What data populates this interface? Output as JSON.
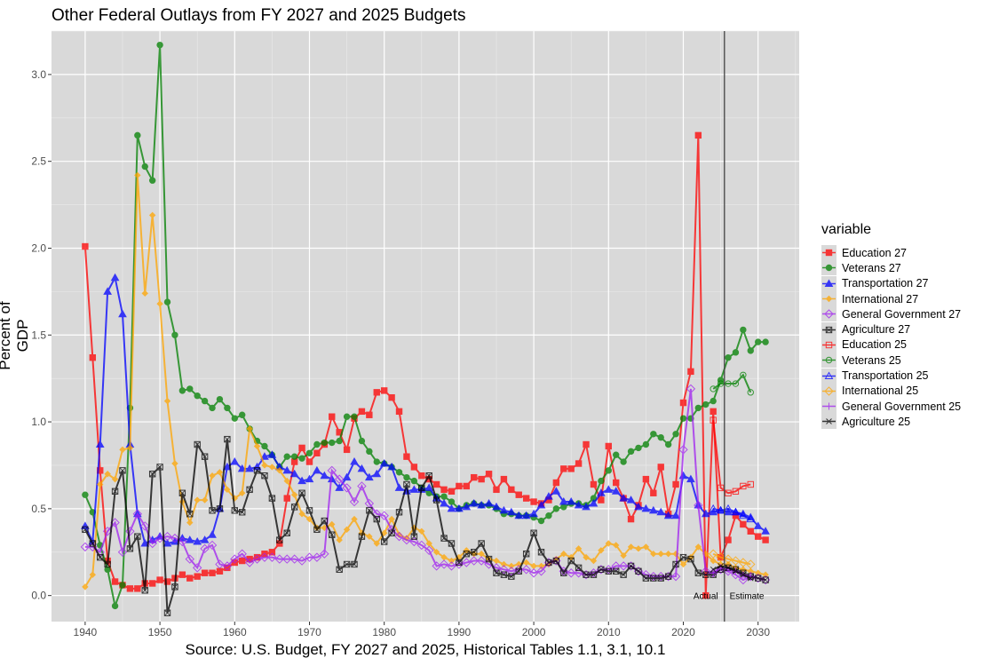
{
  "chart_data": {
    "type": "line",
    "title": "Other Federal Outlays from FY 2027 and 2025 Budgets",
    "xlabel": "Source: U.S. Budget, FY 2027 and 2025, Historical Tables 1.1, 3.1, 10.1",
    "ylabel": "Percent of GDP",
    "xlim": [
      1935.5,
      2035.5
    ],
    "ylim": [
      -0.15,
      3.25
    ],
    "xticks": [
      1940,
      1950,
      1960,
      1970,
      1980,
      1990,
      2000,
      2010,
      2020,
      2030
    ],
    "yticks": [
      "0.0",
      "0.5",
      "1.0",
      "1.5",
      "2.0",
      "2.5",
      "3.0"
    ],
    "grid": true,
    "legend_title": "variable",
    "legend_position": "right",
    "divider_year": 2025.5,
    "annotations": [
      {
        "text": "Actual",
        "x": 2023,
        "y": 0.0
      },
      {
        "text": "Estimate",
        "x": 2028.5,
        "y": 0.0
      }
    ],
    "series": [
      {
        "name": "Education 27",
        "color": "#ff0000",
        "marker": "square-filled",
        "start": 1940,
        "values": [
          2.01,
          1.37,
          0.72,
          0.2,
          0.08,
          0.06,
          0.04,
          0.04,
          0.07,
          0.07,
          0.09,
          0.08,
          0.1,
          0.12,
          0.1,
          0.11,
          0.13,
          0.13,
          0.14,
          0.16,
          0.19,
          0.2,
          0.21,
          0.22,
          0.24,
          0.25,
          0.3,
          0.56,
          0.77,
          0.85,
          0.77,
          0.82,
          0.87,
          1.03,
          0.94,
          0.84,
          1.02,
          1.06,
          1.04,
          1.17,
          1.18,
          1.14,
          1.06,
          0.8,
          0.74,
          0.69,
          0.67,
          0.64,
          0.61,
          0.6,
          0.63,
          0.63,
          0.68,
          0.67,
          0.7,
          0.61,
          0.67,
          0.61,
          0.58,
          0.56,
          0.54,
          0.53,
          0.55,
          0.65,
          0.73,
          0.73,
          0.76,
          0.87,
          0.64,
          0.55,
          0.86,
          0.65,
          0.56,
          0.44,
          0.52,
          0.67,
          0.59,
          0.74,
          0.47,
          0.64,
          1.11,
          1.29,
          2.65,
          0.0,
          1.06,
          0.22,
          0.32,
          0.46,
          0.41,
          0.37,
          0.34,
          0.32
        ]
      },
      {
        "name": "Veterans 27",
        "color": "#008000",
        "marker": "circle-filled",
        "start": 1940,
        "values": [
          0.58,
          0.48,
          0.29,
          0.15,
          -0.06,
          0.06,
          1.08,
          2.65,
          2.47,
          2.39,
          3.17,
          1.69,
          1.5,
          1.18,
          1.19,
          1.15,
          1.12,
          1.08,
          1.13,
          1.08,
          1.02,
          1.04,
          0.96,
          0.89,
          0.86,
          0.81,
          0.74,
          0.8,
          0.8,
          0.79,
          0.82,
          0.87,
          0.88,
          0.88,
          0.89,
          1.03,
          1.03,
          0.89,
          0.83,
          0.77,
          0.76,
          0.74,
          0.71,
          0.68,
          0.66,
          0.62,
          0.59,
          0.57,
          0.57,
          0.54,
          0.5,
          0.52,
          0.53,
          0.52,
          0.52,
          0.5,
          0.47,
          0.47,
          0.46,
          0.46,
          0.45,
          0.43,
          0.46,
          0.5,
          0.51,
          0.53,
          0.53,
          0.52,
          0.56,
          0.66,
          0.72,
          0.81,
          0.77,
          0.83,
          0.85,
          0.87,
          0.93,
          0.91,
          0.87,
          0.93,
          1.02,
          1.02,
          1.08,
          1.1,
          1.12,
          1.24,
          1.37,
          1.4,
          1.53,
          1.41,
          1.46,
          1.46
        ]
      },
      {
        "name": "Transportation 27",
        "color": "#0000ff",
        "marker": "triangle-filled",
        "start": 1940,
        "values": [
          0.4,
          0.31,
          0.87,
          1.75,
          1.83,
          1.62,
          0.87,
          0.47,
          0.3,
          0.32,
          0.34,
          0.3,
          0.31,
          0.33,
          0.32,
          0.31,
          0.32,
          0.35,
          0.5,
          0.74,
          0.77,
          0.73,
          0.73,
          0.74,
          0.8,
          0.81,
          0.74,
          0.72,
          0.7,
          0.66,
          0.67,
          0.72,
          0.69,
          0.67,
          0.62,
          0.68,
          0.77,
          0.73,
          0.68,
          0.7,
          0.76,
          0.74,
          0.62,
          0.6,
          0.61,
          0.61,
          0.62,
          0.56,
          0.53,
          0.5,
          0.5,
          0.51,
          0.53,
          0.52,
          0.53,
          0.51,
          0.49,
          0.48,
          0.46,
          0.46,
          0.47,
          0.52,
          0.57,
          0.6,
          0.54,
          0.54,
          0.52,
          0.51,
          0.53,
          0.59,
          0.61,
          0.6,
          0.56,
          0.55,
          0.51,
          0.5,
          0.49,
          0.48,
          0.46,
          0.46,
          0.69,
          0.67,
          0.52,
          0.47,
          0.48,
          0.49,
          0.48,
          0.48,
          0.47,
          0.45,
          0.4,
          0.37
        ]
      },
      {
        "name": "International 27",
        "color": "#ffa500",
        "marker": "diamond-filled",
        "start": 1940,
        "values": [
          0.05,
          0.12,
          0.64,
          0.7,
          0.67,
          0.84,
          0.85,
          2.42,
          1.74,
          2.19,
          1.68,
          1.12,
          0.76,
          0.54,
          0.42,
          0.55,
          0.55,
          0.69,
          0.71,
          0.61,
          0.56,
          0.59,
          0.96,
          0.86,
          0.75,
          0.74,
          0.72,
          0.66,
          0.58,
          0.47,
          0.44,
          0.39,
          0.39,
          0.41,
          0.32,
          0.38,
          0.44,
          0.36,
          0.34,
          0.3,
          0.36,
          0.44,
          0.35,
          0.33,
          0.39,
          0.37,
          0.3,
          0.25,
          0.22,
          0.2,
          0.22,
          0.26,
          0.24,
          0.24,
          0.21,
          0.2,
          0.18,
          0.17,
          0.18,
          0.19,
          0.17,
          0.17,
          0.18,
          0.21,
          0.24,
          0.22,
          0.27,
          0.22,
          0.2,
          0.26,
          0.3,
          0.29,
          0.23,
          0.28,
          0.27,
          0.28,
          0.24,
          0.24,
          0.24,
          0.24,
          0.18,
          0.22,
          0.28,
          0.24,
          0.2,
          0.18,
          0.18,
          0.16,
          0.15,
          0.14,
          0.13,
          0.12
        ]
      },
      {
        "name": "General Government 27",
        "color": "#a020f0",
        "marker": "diamond-open",
        "start": 1940,
        "values": [
          0.28,
          0.28,
          0.25,
          0.37,
          0.42,
          0.25,
          0.37,
          0.47,
          0.4,
          0.3,
          0.33,
          0.34,
          0.33,
          0.31,
          0.21,
          0.16,
          0.27,
          0.29,
          0.18,
          0.17,
          0.21,
          0.24,
          0.19,
          0.21,
          0.22,
          0.22,
          0.21,
          0.21,
          0.21,
          0.2,
          0.22,
          0.22,
          0.24,
          0.72,
          0.67,
          0.62,
          0.54,
          0.63,
          0.53,
          0.47,
          0.46,
          0.38,
          0.34,
          0.32,
          0.31,
          0.29,
          0.26,
          0.17,
          0.18,
          0.17,
          0.18,
          0.19,
          0.2,
          0.2,
          0.18,
          0.16,
          0.15,
          0.14,
          0.15,
          0.15,
          0.13,
          0.14,
          0.19,
          0.2,
          0.14,
          0.13,
          0.13,
          0.12,
          0.13,
          0.15,
          0.15,
          0.17,
          0.17,
          0.17,
          0.14,
          0.12,
          0.11,
          0.11,
          0.11,
          0.11,
          0.84,
          1.19,
          0.52,
          0.14,
          0.13,
          0.15,
          0.14,
          0.12,
          0.09,
          0.11,
          0.1,
          0.09
        ]
      },
      {
        "name": "Agriculture 27",
        "color": "#000000",
        "marker": "square-x",
        "start": 1940,
        "values": [
          0.38,
          0.3,
          0.22,
          0.18,
          0.6,
          0.72,
          0.27,
          0.34,
          0.03,
          0.7,
          0.74,
          -0.1,
          0.05,
          0.59,
          0.47,
          0.87,
          0.8,
          0.49,
          0.5,
          0.9,
          0.49,
          0.48,
          0.61,
          0.72,
          0.69,
          0.56,
          0.32,
          0.36,
          0.51,
          0.59,
          0.49,
          0.38,
          0.43,
          0.35,
          0.15,
          0.18,
          0.18,
          0.34,
          0.49,
          0.44,
          0.31,
          0.36,
          0.48,
          0.64,
          0.34,
          0.62,
          0.69,
          0.55,
          0.33,
          0.3,
          0.19,
          0.24,
          0.25,
          0.3,
          0.21,
          0.13,
          0.12,
          0.11,
          0.14,
          0.24,
          0.36,
          0.25,
          0.19,
          0.2,
          0.13,
          0.2,
          0.16,
          0.12,
          0.12,
          0.15,
          0.14,
          0.14,
          0.12,
          0.17,
          0.14,
          0.1,
          0.1,
          0.1,
          0.11,
          0.18,
          0.22,
          0.21,
          0.13,
          0.12,
          0.12,
          0.15,
          0.16,
          0.15,
          0.13,
          0.11,
          0.1,
          0.09
        ]
      },
      {
        "name": "Education 25",
        "color": "#ff0000",
        "marker": "square-open",
        "start": 2024,
        "values": [
          1.01,
          0.62,
          0.59,
          0.6,
          0.63,
          0.64
        ]
      },
      {
        "name": "Veterans 25",
        "color": "#008000",
        "marker": "circle-open",
        "start": 2024,
        "values": [
          1.19,
          1.22,
          1.22,
          1.22,
          1.27,
          1.17
        ]
      },
      {
        "name": "Transportation 25",
        "color": "#0000ff",
        "marker": "triangle-open",
        "start": 2024,
        "values": [
          0.5,
          0.49,
          0.5,
          0.48,
          0.46,
          0.44
        ]
      },
      {
        "name": "International 25",
        "color": "#ffa500",
        "marker": "diamond-open",
        "start": 2024,
        "values": [
          0.24,
          0.22,
          0.21,
          0.2,
          0.19,
          0.18
        ]
      },
      {
        "name": "General Government 25",
        "color": "#a020f0",
        "marker": "plus",
        "start": 2024,
        "values": [
          0.13,
          0.16,
          0.15,
          0.14,
          0.12,
          0.11
        ]
      },
      {
        "name": "Agriculture 25",
        "color": "#000000",
        "marker": "x",
        "start": 2024,
        "values": [
          0.15,
          0.17,
          0.16,
          0.14,
          0.12,
          0.1
        ]
      }
    ]
  }
}
